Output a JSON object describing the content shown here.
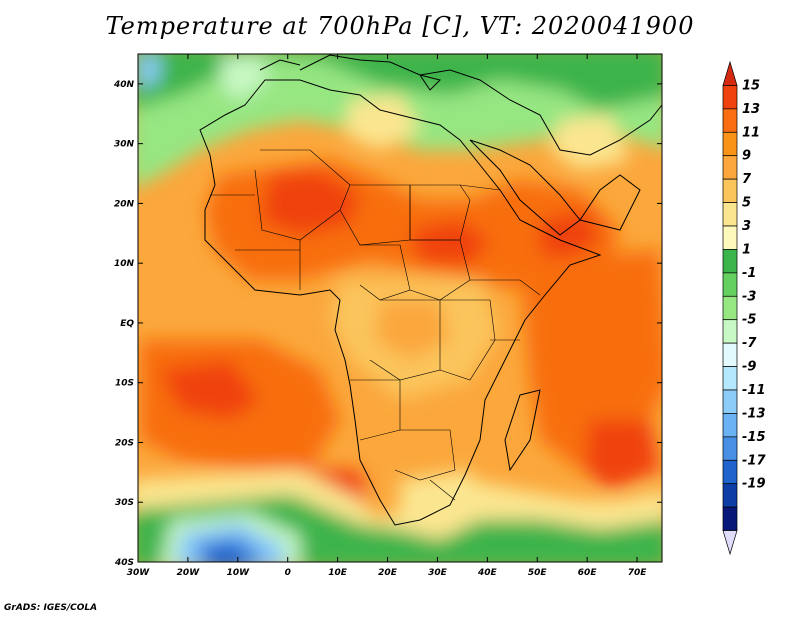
{
  "title": "Temperature at 700hPa [C], VT: 2020041900",
  "credit": "GrADS: IGES/COLA",
  "map": {
    "extent": {
      "lon_min": -30,
      "lon_max": 75,
      "lat_min": -40,
      "lat_max": 45
    },
    "lon_ticks": [
      {
        "value": -30,
        "label": "30W"
      },
      {
        "value": -20,
        "label": "20W"
      },
      {
        "value": -10,
        "label": "10W"
      },
      {
        "value": 0,
        "label": "0"
      },
      {
        "value": 10,
        "label": "10E"
      },
      {
        "value": 20,
        "label": "20E"
      },
      {
        "value": 30,
        "label": "30E"
      },
      {
        "value": 40,
        "label": "40E"
      },
      {
        "value": 50,
        "label": "50E"
      },
      {
        "value": 60,
        "label": "60E"
      },
      {
        "value": 70,
        "label": "70E"
      }
    ],
    "lat_ticks": [
      {
        "value": 40,
        "label": "40N"
      },
      {
        "value": 30,
        "label": "30N"
      },
      {
        "value": 20,
        "label": "20N"
      },
      {
        "value": 10,
        "label": "10N"
      },
      {
        "value": 0,
        "label": "EQ"
      },
      {
        "value": -10,
        "label": "10S"
      },
      {
        "value": -20,
        "label": "20S"
      },
      {
        "value": -30,
        "label": "30S"
      },
      {
        "value": -40,
        "label": "40S"
      }
    ]
  },
  "colorbar": {
    "labels": [
      "15",
      "13",
      "11",
      "9",
      "7",
      "5",
      "3",
      "1",
      "-1",
      "-3",
      "-5",
      "-7",
      "-9",
      "-11",
      "-13",
      "-15",
      "-17",
      "-19"
    ],
    "colors": [
      "#d42a12",
      "#f0420f",
      "#f86e10",
      "#f99318",
      "#fba73c",
      "#fbc55c",
      "#fbe690",
      "#fdf8bb",
      "#3cb44c",
      "#64d060",
      "#96e682",
      "#c8f8c4",
      "#e2fafe",
      "#b4e8fc",
      "#8cccf8",
      "#6ab2f4",
      "#4890e4",
      "#1f64cc",
      "#0d3ea6",
      "#081878",
      "#e0dcfc"
    ]
  }
}
